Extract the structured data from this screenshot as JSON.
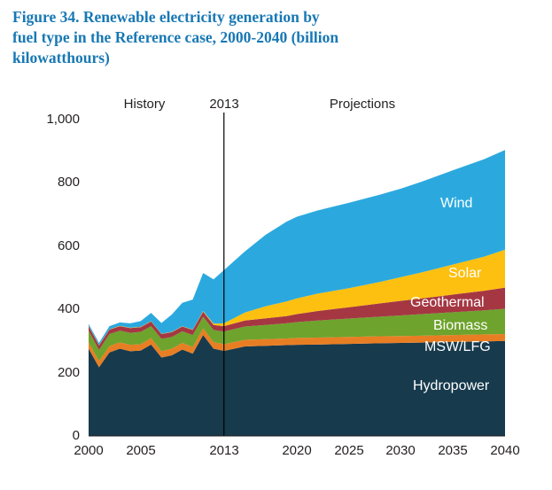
{
  "title": {
    "line1": "Figure 34. Renewable electricity generation by",
    "line2": "fuel type in the Reference case, 2000-2040 (billion",
    "line3": "kilowatthours)"
  },
  "annotations": {
    "history": "History",
    "divider_year": "2013",
    "projections": "Projections"
  },
  "y_axis": {
    "ticks": [
      "1,000",
      "800",
      "600",
      "400",
      "200",
      "0"
    ]
  },
  "x_axis": {
    "ticks": [
      "2000",
      "2005",
      "2013",
      "2020",
      "2025",
      "2030",
      "2035",
      "2040"
    ]
  },
  "colors": {
    "title_text": "#1878B4",
    "axis_text": "#231F20",
    "divider_line": "#000000",
    "hydropower": "#173A4D",
    "msw_lfg": "#E87E23",
    "biomass": "#6EA32D",
    "geothermal": "#A53743",
    "solar": "#FDC010",
    "wind": "#2BA9DF"
  },
  "chart_data": {
    "type": "area",
    "stacked": true,
    "title": "Figure 34. Renewable electricity generation by fuel type in the Reference case, 2000-2040 (billion kilowatthours)",
    "xlabel": "",
    "ylabel": "billion kilowatthours",
    "xlim": [
      2000,
      2040
    ],
    "ylim": [
      0,
      1000
    ],
    "grid": false,
    "legend_position": "inside-area-labels",
    "divider_x": 2013,
    "x": [
      2000,
      2001,
      2002,
      2003,
      2004,
      2005,
      2006,
      2007,
      2008,
      2009,
      2010,
      2011,
      2012,
      2013,
      2015,
      2017,
      2019,
      2020,
      2022,
      2025,
      2028,
      2030,
      2032,
      2035,
      2038,
      2040
    ],
    "series": [
      {
        "name": "Hydropower",
        "color": "#173A4D",
        "values": [
          276,
          217,
          264,
          276,
          268,
          270,
          289,
          248,
          255,
          273,
          260,
          319,
          276,
          269,
          283,
          285,
          287,
          288,
          289,
          291,
          293,
          294,
          295,
          297,
          299,
          300
        ]
      },
      {
        "name": "MSW/LFG",
        "color": "#E87E23",
        "values": [
          20,
          20,
          20,
          20,
          20,
          20,
          20,
          20,
          21,
          21,
          21,
          21,
          21,
          21,
          21,
          21,
          21,
          22,
          22,
          22,
          22,
          22,
          22,
          22,
          22,
          22
        ]
      },
      {
        "name": "Biomass",
        "color": "#6EA32D",
        "values": [
          37,
          35,
          38,
          37,
          38,
          39,
          38,
          39,
          37,
          37,
          38,
          37,
          38,
          40,
          42,
          45,
          48,
          50,
          54,
          58,
          62,
          65,
          68,
          72,
          76,
          80
        ]
      },
      {
        "name": "Geothermal",
        "color": "#A53743",
        "values": [
          14,
          14,
          14,
          14,
          15,
          15,
          15,
          15,
          15,
          15,
          16,
          16,
          16,
          17,
          19,
          21,
          23,
          25,
          30,
          36,
          42,
          46,
          50,
          56,
          62,
          67
        ]
      },
      {
        "name": "Solar",
        "color": "#FDC010",
        "values": [
          1,
          1,
          1,
          1,
          1,
          1,
          1,
          1,
          1,
          1,
          1,
          2,
          4,
          9,
          25,
          38,
          46,
          50,
          55,
          60,
          68,
          75,
          82,
          95,
          108,
          120
        ]
      },
      {
        "name": "Wind",
        "color": "#2BA9DF",
        "values": [
          6,
          7,
          10,
          11,
          14,
          18,
          26,
          34,
          55,
          74,
          95,
          120,
          140,
          168,
          193,
          226,
          252,
          258,
          263,
          270,
          276,
          280,
          287,
          298,
          308,
          315
        ]
      }
    ]
  }
}
